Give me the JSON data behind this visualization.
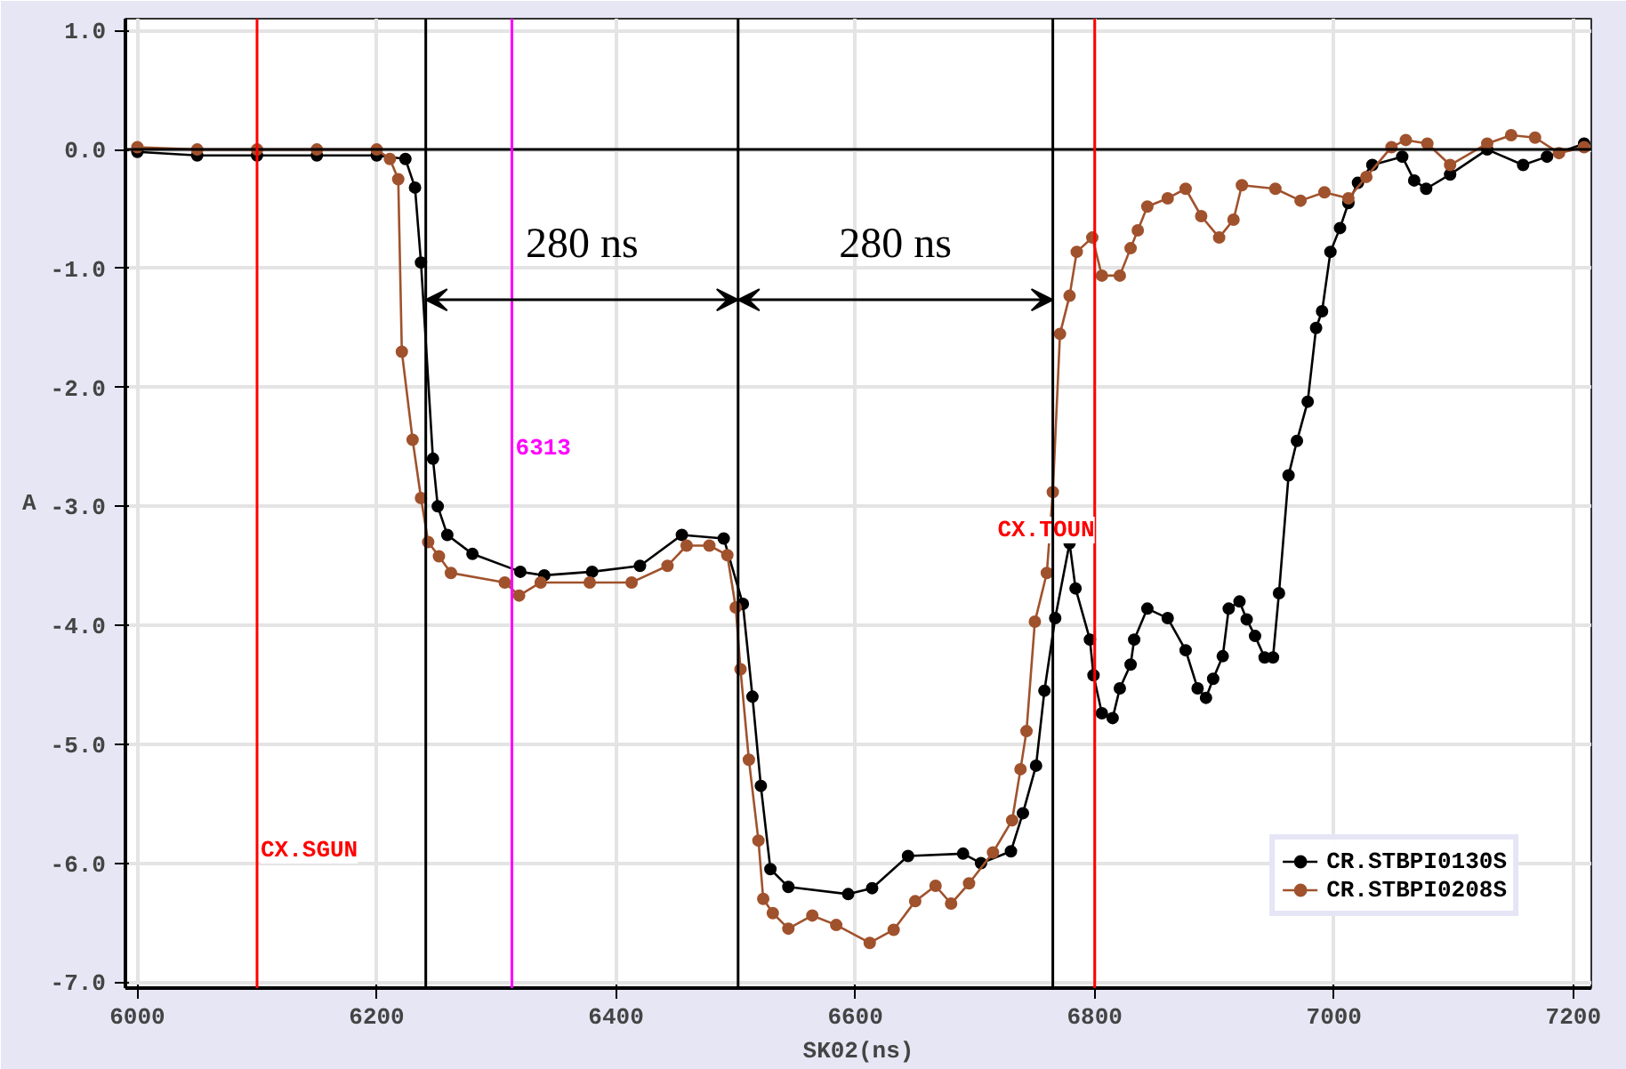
{
  "chart_data": {
    "type": "line",
    "xlabel": "SK02(ns)",
    "ylabel": "A",
    "marker": "circle",
    "line_style": "solid",
    "grid": true,
    "legend": "bottom right",
    "xlim": [
      5990,
      7215
    ],
    "xticks": [
      6000,
      6200,
      6400,
      6600,
      6800,
      7000,
      7200
    ],
    "ylim": [
      -7.05,
      1.1
    ],
    "yticks": [
      {
        "value": 1,
        "label": "1.0"
      },
      {
        "value": 0,
        "label": "0.0"
      },
      {
        "value": -1,
        "label": "-1.0"
      },
      {
        "value": -2,
        "label": "-2.0"
      },
      {
        "value": -3,
        "label": "-3.0"
      },
      {
        "value": -4,
        "label": "-4.0"
      },
      {
        "value": -5,
        "label": "-5.0"
      },
      {
        "value": -6,
        "label": "-6.0"
      },
      {
        "value": -7,
        "label": "-7.0"
      }
    ],
    "series": [
      {
        "name": "CR.STBPI0130S",
        "color": "#000000",
        "x": [
          6000,
          6050,
          6100,
          6150,
          6200,
          6224,
          6232,
          6237,
          6247,
          6251,
          6259,
          6280,
          6320,
          6340,
          6380,
          6420,
          6455,
          6490,
          6506,
          6514,
          6521,
          6529,
          6544,
          6594,
          6614,
          6644,
          6690,
          6705,
          6730,
          6740,
          6751,
          6758,
          6767,
          6779,
          6784,
          6796,
          6799,
          6806,
          6815,
          6821,
          6830,
          6833,
          6844,
          6861,
          6876,
          6886,
          6893,
          6899,
          6907,
          6912,
          6921,
          6927,
          6934,
          6942,
          6949,
          6954,
          6962,
          6969,
          6978,
          6985,
          6990,
          6997,
          7005,
          7012,
          7020,
          7032,
          7057,
          7067,
          7077,
          7097,
          7128,
          7158,
          7178,
          7209
        ],
        "values": [
          -0.02,
          -0.05,
          -0.05,
          -0.05,
          -0.05,
          -0.08,
          -0.32,
          -0.95,
          -2.6,
          -3.0,
          -3.24,
          -3.4,
          -3.55,
          -3.58,
          -3.55,
          -3.5,
          -3.24,
          -3.27,
          -3.82,
          -4.6,
          -5.35,
          -6.05,
          -6.2,
          -6.26,
          -6.21,
          -5.94,
          -5.92,
          -6.0,
          -5.9,
          -5.58,
          -5.18,
          -4.55,
          -3.94,
          -3.31,
          -3.69,
          -4.12,
          -4.42,
          -4.74,
          -4.78,
          -4.53,
          -4.33,
          -4.12,
          -3.86,
          -3.94,
          -4.21,
          -4.53,
          -4.61,
          -4.45,
          -4.26,
          -3.86,
          -3.8,
          -3.95,
          -4.09,
          -4.27,
          -4.27,
          -3.73,
          -2.74,
          -2.45,
          -2.12,
          -1.5,
          -1.36,
          -0.86,
          -0.66,
          -0.45,
          -0.28,
          -0.13,
          -0.06,
          -0.26,
          -0.33,
          -0.21,
          0.0,
          -0.13,
          -0.06,
          0.05
        ]
      },
      {
        "name": "CR.STBPI0208S",
        "color": "#a0522d",
        "x": [
          6000,
          6050,
          6100,
          6150,
          6200,
          6211,
          6218,
          6221,
          6230,
          6237,
          6243,
          6252,
          6262,
          6307,
          6319,
          6337,
          6378,
          6413,
          6443,
          6459,
          6478,
          6493,
          6500,
          6504,
          6511,
          6519,
          6523,
          6531,
          6544,
          6564,
          6584,
          6612,
          6632,
          6650,
          6667,
          6680,
          6695,
          6715,
          6731,
          6738,
          6743,
          6750,
          6760,
          6765,
          6771,
          6779,
          6785,
          6798,
          6806,
          6821,
          6830,
          6836,
          6844,
          6861,
          6876,
          6889,
          6904,
          6916,
          6923,
          6951,
          6972,
          6992,
          7012,
          7027,
          7048,
          7060,
          7078,
          7097,
          7128,
          7148,
          7168,
          7188,
          7209
        ],
        "values": [
          0.02,
          0.0,
          0.0,
          0.0,
          0.0,
          -0.08,
          -0.25,
          -1.7,
          -2.44,
          -2.93,
          -3.3,
          -3.42,
          -3.56,
          -3.64,
          -3.75,
          -3.64,
          -3.64,
          -3.64,
          -3.5,
          -3.33,
          -3.33,
          -3.41,
          -3.85,
          -4.37,
          -5.13,
          -5.81,
          -6.3,
          -6.42,
          -6.55,
          -6.44,
          -6.52,
          -6.67,
          -6.56,
          -6.32,
          -6.19,
          -6.34,
          -6.17,
          -5.91,
          -5.64,
          -5.21,
          -4.89,
          -3.97,
          -3.56,
          -2.88,
          -1.55,
          -1.23,
          -0.86,
          -0.74,
          -1.06,
          -1.06,
          -0.83,
          -0.68,
          -0.48,
          -0.41,
          -0.33,
          -0.56,
          -0.74,
          -0.59,
          -0.3,
          -0.33,
          -0.43,
          -0.36,
          -0.41,
          -0.23,
          0.02,
          0.08,
          0.05,
          -0.13,
          0.05,
          0.12,
          0.1,
          -0.03,
          0.02
        ]
      }
    ],
    "ref_lines": [
      {
        "axis": "y",
        "value": 0,
        "color": "#000000"
      },
      {
        "axis": "x",
        "value": 6100,
        "label": "CX.SGUN",
        "color": "#ff0000"
      },
      {
        "axis": "x",
        "value": 6313,
        "label": "6313",
        "color": "#ff00ff"
      },
      {
        "axis": "x",
        "value": 6800,
        "label": "CX.TOUN",
        "color": "#ff0000"
      },
      {
        "axis": "x",
        "value": 6241,
        "color": "#000000"
      },
      {
        "axis": "x",
        "value": 6502,
        "color": "#000000"
      },
      {
        "axis": "x",
        "value": 6765,
        "color": "#000000"
      }
    ],
    "annotations": [
      "280 ns",
      "280 ns"
    ]
  }
}
